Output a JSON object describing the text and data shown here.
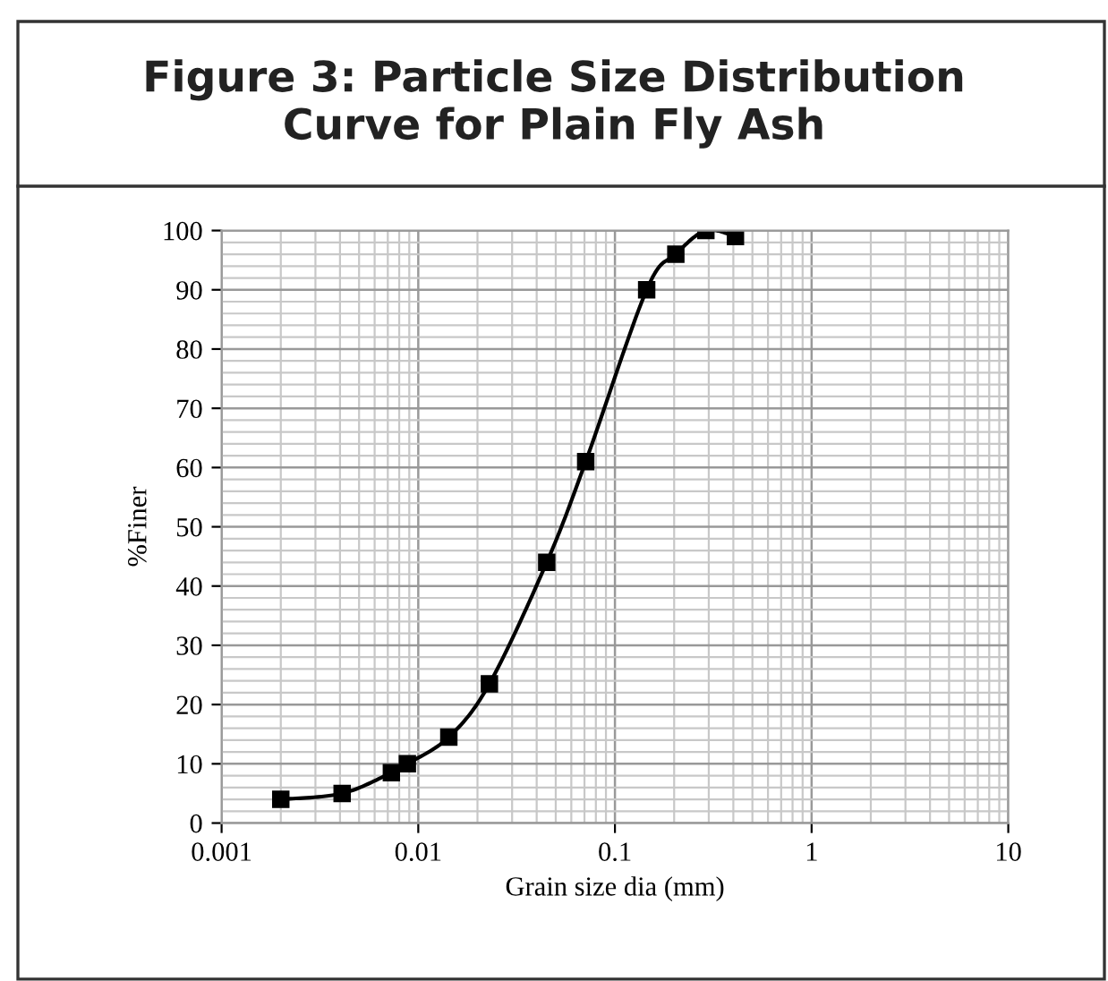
{
  "chart_data": {
    "type": "line",
    "title": "Figure 3: Particle Size Distribution\nCurve for Plain Fly Ash",
    "xlabel": "Grain size dia (mm)",
    "ylabel": "%Finer",
    "series": [
      {
        "color": "#000000",
        "x": [
          0.002,
          0.0041,
          0.0073,
          0.0088,
          0.0143,
          0.023,
          0.045,
          0.071,
          0.145,
          0.204,
          0.29,
          0.41
        ],
        "values": [
          4,
          5,
          8.5,
          10,
          14.5,
          23.5,
          44,
          61,
          90,
          96,
          100,
          99
        ]
      }
    ],
    "log": "x",
    "xlim": [
      0.001,
      10
    ],
    "xticks": [
      0.001,
      0.01,
      0.1,
      1,
      10
    ],
    "ylim": [
      0,
      100
    ],
    "yticks": [
      0,
      10,
      20,
      30,
      40,
      50,
      60,
      70,
      80,
      90,
      100
    ],
    "grid": true,
    "marker": "square",
    "line_style": "solid"
  }
}
